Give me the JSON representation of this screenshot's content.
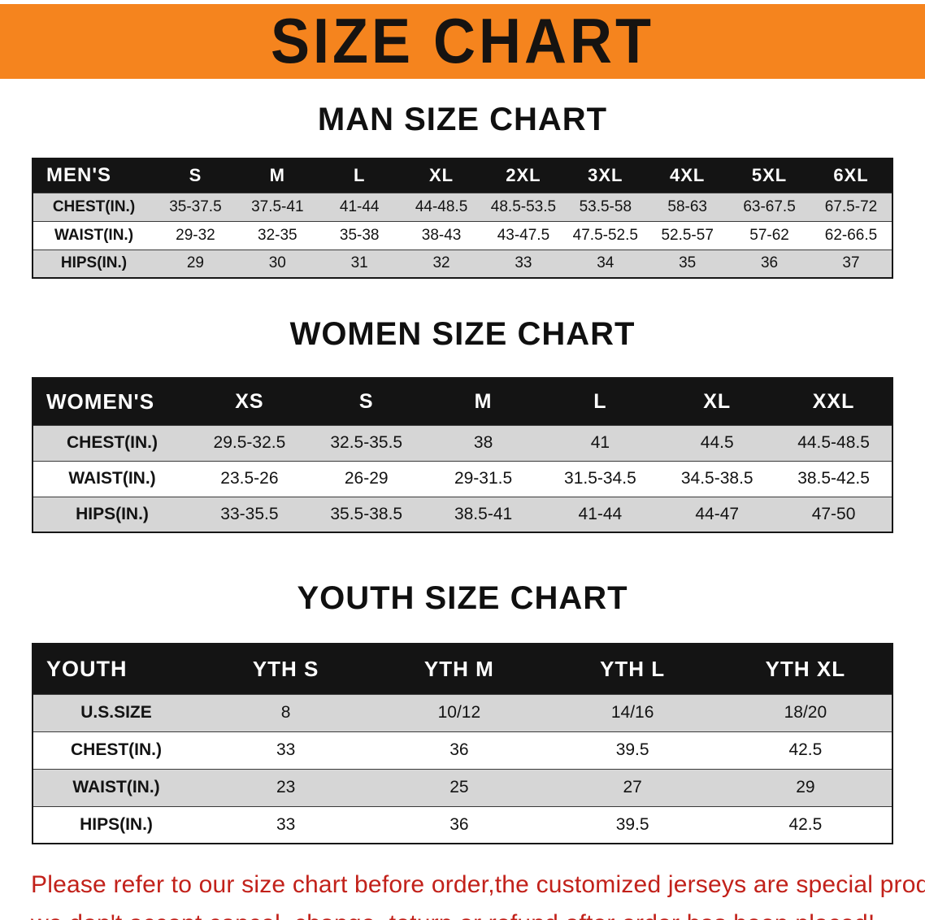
{
  "banner": {
    "title": "SIZE CHART"
  },
  "colors": {
    "banner_orange": "#F5841E",
    "table_header_black": "#141414",
    "row_gray": "#D6D6D6",
    "disclaimer_red": "#C2211A"
  },
  "sections": [
    {
      "heading": "MAN SIZE CHART",
      "table": {
        "header": [
          "MEN'S",
          "S",
          "M",
          "L",
          "XL",
          "2XL",
          "3XL",
          "4XL",
          "5XL",
          "6XL"
        ],
        "rows": [
          [
            "CHEST(IN.)",
            "35-37.5",
            "37.5-41",
            "41-44",
            "44-48.5",
            "48.5-53.5",
            "53.5-58",
            "58-63",
            "63-67.5",
            "67.5-72"
          ],
          [
            "WAIST(IN.)",
            "29-32",
            "32-35",
            "35-38",
            "38-43",
            "43-47.5",
            "47.5-52.5",
            "52.5-57",
            "57-62",
            "62-66.5"
          ],
          [
            "HIPS(IN.)",
            "29",
            "30",
            "31",
            "32",
            "33",
            "34",
            "35",
            "36",
            "37"
          ]
        ]
      }
    },
    {
      "heading": "WOMEN SIZE CHART",
      "table": {
        "header": [
          "WOMEN'S",
          "XS",
          "S",
          "M",
          "L",
          "XL",
          "XXL"
        ],
        "rows": [
          [
            "CHEST(IN.)",
            "29.5-32.5",
            "32.5-35.5",
            "38",
            "41",
            "44.5",
            "44.5-48.5"
          ],
          [
            "WAIST(IN.)",
            "23.5-26",
            "26-29",
            "29-31.5",
            "31.5-34.5",
            "34.5-38.5",
            "38.5-42.5"
          ],
          [
            "HIPS(IN.)",
            "33-35.5",
            "35.5-38.5",
            "38.5-41",
            "41-44",
            "44-47",
            "47-50"
          ]
        ]
      }
    },
    {
      "heading": "YOUTH SIZE CHART",
      "table": {
        "header": [
          "YOUTH",
          "YTH S",
          "YTH M",
          "YTH L",
          "YTH XL"
        ],
        "rows": [
          [
            "U.S.SIZE",
            "8",
            "10/12",
            "14/16",
            "18/20"
          ],
          [
            "CHEST(IN.)",
            "33",
            "36",
            "39.5",
            "42.5"
          ],
          [
            "WAIST(IN.)",
            "23",
            "25",
            "27",
            "29"
          ],
          [
            "HIPS(IN.)",
            "33",
            "36",
            "39.5",
            "42.5"
          ]
        ]
      }
    }
  ],
  "disclaimer": {
    "line1": "Please refer to our size chart before order,the customized jerseys are special products,",
    "line2": "we don't accept cancel, change, teturn or refund after order has been placed!"
  }
}
